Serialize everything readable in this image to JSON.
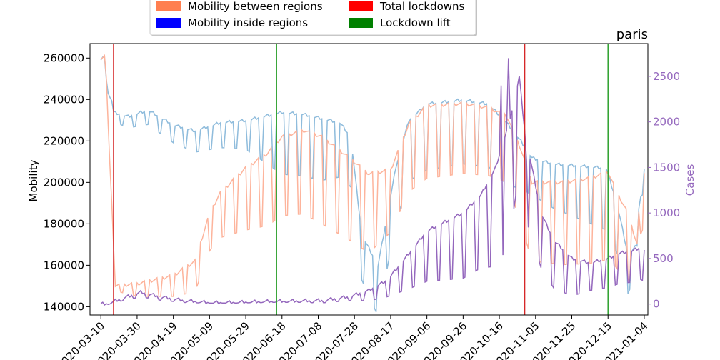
{
  "chart_data": {
    "type": "line",
    "title": "paris",
    "ylabel": "Mobility",
    "y2label": "Cases",
    "ylim": [
      136000,
      267000
    ],
    "y2lim": [
      -120,
      2860
    ],
    "xrange": [
      "2020-03-04",
      "2021-01-06"
    ],
    "yticks": [
      140000,
      160000,
      180000,
      200000,
      220000,
      240000,
      260000
    ],
    "y2ticks": [
      0,
      500,
      1000,
      1500,
      2000,
      2500
    ],
    "xticks": [
      "2020-03-10",
      "2020-03-30",
      "2020-04-19",
      "2020-05-09",
      "2020-05-29",
      "2020-06-18",
      "2020-07-08",
      "2020-07-28",
      "2020-08-17",
      "2020-09-06",
      "2020-09-26",
      "2020-10-16",
      "2020-11-05",
      "2020-11-25",
      "2020-12-15",
      "2021-01-04"
    ],
    "legend": {
      "placement": "top-center",
      "entries": [
        {
          "label": "Mobility between regions",
          "color": "#ff7f50"
        },
        {
          "label": "Total lockdowns",
          "color": "#ff0000"
        },
        {
          "label": "Mobility inside regions",
          "color": "#0000ff"
        },
        {
          "label": "Lockdown lift",
          "color": "#008000"
        }
      ]
    },
    "vlines": [
      {
        "type": "Total lockdowns",
        "date": "2020-03-17",
        "color": "#d62728"
      },
      {
        "type": "Total lockdowns",
        "date": "2020-10-30",
        "color": "#d62728"
      },
      {
        "type": "Lockdown lift",
        "date": "2020-06-15",
        "color": "#2ca02c"
      },
      {
        "type": "Lockdown lift",
        "date": "2020-12-15",
        "color": "#2ca02c"
      }
    ],
    "series": [
      {
        "name": "Mobility inside regions",
        "axis": "left",
        "color": "#8fbcdc",
        "anchors": [
          [
            "2020-03-10",
            259000
          ],
          [
            "2020-03-12",
            261000
          ],
          [
            "2020-03-13",
            250000
          ],
          [
            "2020-03-15",
            246000
          ],
          [
            "2020-03-17",
            234000
          ],
          [
            "2020-03-25",
            232000
          ],
          [
            "2020-04-05",
            235000
          ],
          [
            "2020-04-19",
            228000
          ],
          [
            "2020-05-01",
            225000
          ],
          [
            "2020-05-15",
            229000
          ],
          [
            "2020-05-29",
            230000
          ],
          [
            "2020-06-18",
            234000
          ],
          [
            "2020-06-30",
            233000
          ],
          [
            "2020-07-10",
            231000
          ],
          [
            "2020-07-20",
            229000
          ],
          [
            "2020-07-26",
            222000
          ],
          [
            "2020-08-01",
            175000
          ],
          [
            "2020-08-10",
            160000
          ],
          [
            "2020-08-20",
            208000
          ],
          [
            "2020-08-27",
            230000
          ],
          [
            "2020-09-06",
            238000
          ],
          [
            "2020-09-26",
            240000
          ],
          [
            "2020-10-10",
            238000
          ],
          [
            "2020-10-20",
            229000
          ],
          [
            "2020-10-28",
            220000
          ],
          [
            "2020-11-03",
            212000
          ],
          [
            "2020-11-15",
            209000
          ],
          [
            "2020-12-01",
            208000
          ],
          [
            "2020-12-14",
            207000
          ],
          [
            "2020-12-20",
            190000
          ],
          [
            "2020-12-26",
            165000
          ],
          [
            "2020-12-31",
            170000
          ],
          [
            "2021-01-02",
            205000
          ],
          [
            "2021-01-04",
            207000
          ]
        ],
        "weekend_drops": [
          [
            "2020-03-20",
            5000
          ],
          [
            "2020-05-29",
            14000
          ],
          [
            "2020-06-18",
            30000
          ],
          [
            "2020-07-10",
            30000
          ],
          [
            "2020-08-01",
            22000
          ],
          [
            "2020-09-06",
            32000
          ],
          [
            "2020-10-20",
            30000
          ],
          [
            "2020-11-03",
            18000
          ],
          [
            "2020-12-14",
            30000
          ],
          [
            "2021-01-02",
            12000
          ]
        ]
      },
      {
        "name": "Mobility between regions",
        "axis": "left",
        "color": "#fdb49c",
        "anchors": [
          [
            "2020-03-10",
            260000
          ],
          [
            "2020-03-12",
            261000
          ],
          [
            "2020-03-13",
            250000
          ],
          [
            "2020-03-14",
            230000
          ],
          [
            "2020-03-16",
            190000
          ],
          [
            "2020-03-18",
            150000
          ],
          [
            "2020-03-30",
            151000
          ],
          [
            "2020-04-19",
            155000
          ],
          [
            "2020-05-01",
            162000
          ],
          [
            "2020-05-09",
            185000
          ],
          [
            "2020-05-15",
            195000
          ],
          [
            "2020-05-29",
            207000
          ],
          [
            "2020-06-10",
            214000
          ],
          [
            "2020-06-18",
            222000
          ],
          [
            "2020-06-30",
            225000
          ],
          [
            "2020-07-10",
            222000
          ],
          [
            "2020-07-25",
            212000
          ],
          [
            "2020-08-05",
            204000
          ],
          [
            "2020-08-17",
            206000
          ],
          [
            "2020-08-27",
            228000
          ],
          [
            "2020-09-06",
            237000
          ],
          [
            "2020-09-26",
            238000
          ],
          [
            "2020-10-10",
            236000
          ],
          [
            "2020-10-20",
            232000
          ],
          [
            "2020-10-27",
            218000
          ],
          [
            "2020-11-03",
            200000
          ],
          [
            "2020-11-20",
            200000
          ],
          [
            "2020-12-05",
            202000
          ],
          [
            "2020-12-15",
            205000
          ],
          [
            "2020-12-20",
            195000
          ],
          [
            "2020-12-26",
            185000
          ],
          [
            "2020-12-31",
            170000
          ],
          [
            "2021-01-02",
            200000
          ],
          [
            "2021-01-04",
            204000
          ]
        ],
        "weekend_drops": [
          [
            "2020-03-17",
            2000
          ],
          [
            "2020-03-30",
            6000
          ],
          [
            "2020-04-19",
            10000
          ],
          [
            "2020-05-09",
            18000
          ],
          [
            "2020-05-29",
            30000
          ],
          [
            "2020-06-18",
            38000
          ],
          [
            "2020-07-10",
            42000
          ],
          [
            "2020-08-05",
            38000
          ],
          [
            "2020-08-17",
            30000
          ],
          [
            "2020-09-06",
            35000
          ],
          [
            "2020-10-20",
            32000
          ],
          [
            "2020-11-03",
            38000
          ],
          [
            "2020-12-14",
            42000
          ],
          [
            "2021-01-02",
            25000
          ]
        ]
      },
      {
        "name": "Cases",
        "axis": "right",
        "color": "#9467bd",
        "anchors": [
          [
            "2020-03-10",
            0
          ],
          [
            "2020-03-14",
            5
          ],
          [
            "2020-03-20",
            50
          ],
          [
            "2020-04-01",
            130
          ],
          [
            "2020-04-12",
            80
          ],
          [
            "2020-04-25",
            40
          ],
          [
            "2020-05-10",
            15
          ],
          [
            "2020-05-25",
            20
          ],
          [
            "2020-06-10",
            30
          ],
          [
            "2020-06-25",
            35
          ],
          [
            "2020-07-10",
            40
          ],
          [
            "2020-07-25",
            80
          ],
          [
            "2020-08-05",
            150
          ],
          [
            "2020-08-15",
            260
          ],
          [
            "2020-08-27",
            550
          ],
          [
            "2020-09-06",
            800
          ],
          [
            "2020-09-16",
            900
          ],
          [
            "2020-09-26",
            1000
          ],
          [
            "2020-10-06",
            1200
          ],
          [
            "2020-10-14",
            1500
          ],
          [
            "2020-10-20",
            1900
          ],
          [
            "2020-10-24",
            2200
          ],
          [
            "2020-10-27",
            2500
          ],
          [
            "2020-10-30",
            1900
          ],
          [
            "2020-11-03",
            1500
          ],
          [
            "2020-11-08",
            1000
          ],
          [
            "2020-11-15",
            700
          ],
          [
            "2020-11-25",
            500
          ],
          [
            "2020-12-05",
            450
          ],
          [
            "2020-12-15",
            500
          ],
          [
            "2020-12-22",
            560
          ],
          [
            "2020-12-28",
            580
          ],
          [
            "2021-01-02",
            620
          ],
          [
            "2021-01-04",
            600
          ]
        ],
        "weekend_drops": [
          [
            "2020-03-10",
            0
          ],
          [
            "2020-04-01",
            50
          ],
          [
            "2020-05-10",
            5
          ],
          [
            "2020-06-25",
            15
          ],
          [
            "2020-07-25",
            40
          ],
          [
            "2020-08-15",
            180
          ],
          [
            "2020-09-06",
            550
          ],
          [
            "2020-10-06",
            800
          ],
          [
            "2020-10-20",
            1300
          ],
          [
            "2020-11-08",
            600
          ],
          [
            "2020-12-05",
            300
          ],
          [
            "2021-01-02",
            350
          ]
        ],
        "spikes": [
          [
            "2020-10-17",
            2400
          ],
          [
            "2020-10-21",
            2700
          ],
          [
            "2020-10-31",
            1580
          ]
        ]
      }
    ]
  }
}
